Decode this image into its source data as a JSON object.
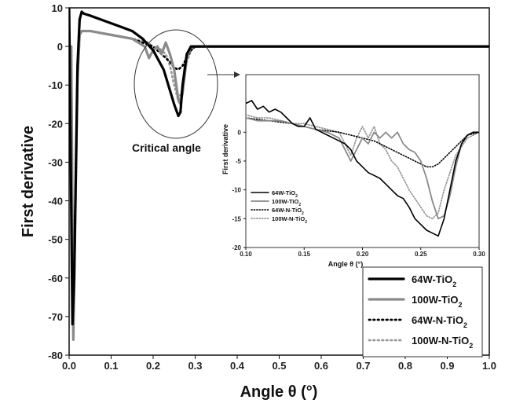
{
  "chart_data": [
    {
      "type": "line",
      "xlabel": "Angle θ (°)",
      "ylabel": "First derivative",
      "xlim": [
        0.0,
        1.0
      ],
      "ylim": [
        -80,
        10
      ],
      "x_ticks": [
        "0.0",
        "0.1",
        "0.2",
        "0.3",
        "0.4",
        "0.5",
        "0.6",
        "0.7",
        "0.8",
        "0.9",
        "1.0"
      ],
      "y_ticks": [
        "10",
        "0",
        "-10",
        "-20",
        "-30",
        "-40",
        "-50",
        "-60",
        "-70",
        "-80"
      ],
      "legend": "bottom-right",
      "annotation": "Critical angle",
      "series": [
        {
          "name": "64W-TiO",
          "subscript": "2",
          "style": "solid-black",
          "x": [
            0.0,
            0.008,
            0.012,
            0.02,
            0.025,
            0.03,
            0.035,
            0.05,
            0.075,
            0.1,
            0.125,
            0.15,
            0.175,
            0.2,
            0.225,
            0.25,
            0.26,
            0.265,
            0.27,
            0.28,
            0.29,
            0.3,
            0.35,
            1.0
          ],
          "y": [
            10,
            -72,
            -60,
            -5,
            7,
            9,
            8.5,
            8,
            7,
            6,
            5,
            4,
            2,
            -1,
            -6,
            -15,
            -18,
            -17,
            -10,
            -2,
            0,
            0,
            0,
            0
          ]
        },
        {
          "name": "100W-TiO",
          "subscript": "2",
          "style": "solid-gray",
          "x": [
            0.005,
            0.01,
            0.02,
            0.025,
            0.03,
            0.05,
            0.1,
            0.15,
            0.18,
            0.19,
            0.2,
            0.21,
            0.22,
            0.23,
            0.24,
            0.25,
            0.26,
            0.265,
            0.27,
            0.28,
            0.29,
            0.3,
            0.35,
            1.0
          ],
          "y": [
            0,
            -76,
            -8,
            3,
            4,
            4,
            3,
            2,
            0,
            -3,
            -1,
            0,
            -2,
            1,
            -2,
            -6,
            -14,
            -15,
            -12,
            -3,
            0,
            0,
            0,
            0
          ]
        },
        {
          "name": "64W-N-TiO",
          "subscript": "2",
          "style": "dotted-black",
          "x": [
            0.005,
            0.01,
            0.02,
            0.025,
            0.03,
            0.05,
            0.1,
            0.15,
            0.2,
            0.22,
            0.24,
            0.25,
            0.26,
            0.27,
            0.28,
            0.29,
            0.3,
            0.35,
            1.0
          ],
          "y": [
            0,
            -75,
            -8,
            3,
            4,
            4,
            3,
            2,
            0,
            -2,
            -4,
            -5.5,
            -6,
            -5,
            -3,
            -1,
            0,
            0,
            0
          ]
        },
        {
          "name": "100W-N-TiO",
          "subscript": "2",
          "style": "dotted-gray",
          "x": [
            0.005,
            0.01,
            0.02,
            0.025,
            0.03,
            0.05,
            0.1,
            0.15,
            0.19,
            0.2,
            0.21,
            0.22,
            0.23,
            0.24,
            0.25,
            0.26,
            0.27,
            0.28,
            0.29,
            0.3,
            0.35,
            1.0
          ],
          "y": [
            0,
            -74,
            -8,
            3,
            4,
            4,
            3,
            2,
            1,
            -1,
            0,
            -1,
            -2,
            -5,
            -10,
            -14,
            -11,
            -4,
            -1,
            0,
            0,
            0
          ]
        }
      ]
    },
    {
      "type": "line",
      "inset": true,
      "xlabel": "Angle θ (°)",
      "ylabel": "First derivative",
      "xlim": [
        0.1,
        0.3
      ],
      "ylim": [
        -20,
        10
      ],
      "x_ticks": [
        "0.10",
        "0.15",
        "0.20",
        "0.25",
        "0.30"
      ],
      "y_ticks": [
        "0",
        "-5",
        "-10",
        "-15",
        "-20"
      ],
      "legend": "bottom-left",
      "series": [
        {
          "name": "64W-TiO",
          "subscript": "2",
          "style": "solid-black",
          "x": [
            0.1,
            0.105,
            0.11,
            0.115,
            0.12,
            0.125,
            0.13,
            0.135,
            0.14,
            0.145,
            0.15,
            0.155,
            0.16,
            0.165,
            0.17,
            0.175,
            0.18,
            0.185,
            0.19,
            0.195,
            0.2,
            0.205,
            0.21,
            0.215,
            0.22,
            0.225,
            0.23,
            0.235,
            0.24,
            0.245,
            0.25,
            0.255,
            0.26,
            0.265,
            0.27,
            0.275,
            0.28,
            0.285,
            0.29,
            0.295,
            0.3
          ],
          "y": [
            5,
            5.5,
            4,
            4.5,
            3.5,
            4,
            3.5,
            2.5,
            1.5,
            1,
            1,
            2.5,
            0.5,
            0,
            -0.5,
            -1,
            -1.5,
            -2,
            -3,
            -5,
            -6,
            -7,
            -7.5,
            -8,
            -9,
            -10,
            -11,
            -11.5,
            -13,
            -15,
            -16,
            -17,
            -17.5,
            -18,
            -15,
            -10,
            -5,
            -2,
            -0.5,
            0,
            0
          ]
        },
        {
          "name": "100W-TiO",
          "subscript": "2",
          "style": "solid-gray",
          "x": [
            0.1,
            0.11,
            0.12,
            0.13,
            0.14,
            0.15,
            0.16,
            0.17,
            0.18,
            0.185,
            0.19,
            0.195,
            0.2,
            0.205,
            0.21,
            0.215,
            0.22,
            0.225,
            0.23,
            0.235,
            0.24,
            0.245,
            0.25,
            0.255,
            0.26,
            0.265,
            0.27,
            0.275,
            0.28,
            0.285,
            0.29,
            0.295,
            0.3
          ],
          "y": [
            2.5,
            2,
            2,
            2,
            1.5,
            1,
            0.5,
            0,
            -1,
            -3,
            -5,
            -3,
            -1,
            -2,
            0,
            -1,
            0,
            -1,
            0,
            -2,
            -3,
            -3.5,
            -5,
            -8,
            -12,
            -15,
            -14.5,
            -11,
            -6,
            -2,
            -0.5,
            0,
            0
          ]
        },
        {
          "name": "64W-N-TiO",
          "subscript": "2",
          "style": "dotted-black",
          "x": [
            0.1,
            0.12,
            0.14,
            0.16,
            0.18,
            0.2,
            0.21,
            0.22,
            0.23,
            0.24,
            0.25,
            0.255,
            0.26,
            0.265,
            0.27,
            0.275,
            0.28,
            0.285,
            0.29,
            0.3
          ],
          "y": [
            2.5,
            2,
            1.5,
            0.5,
            0,
            -1,
            -1.5,
            -2.5,
            -3.5,
            -4.5,
            -5.5,
            -6,
            -6,
            -5.5,
            -4.5,
            -3.5,
            -2.5,
            -1.5,
            -0.5,
            0
          ]
        },
        {
          "name": "100W-N-TiO",
          "subscript": "2",
          "style": "dotted-gray",
          "x": [
            0.1,
            0.11,
            0.12,
            0.13,
            0.14,
            0.15,
            0.16,
            0.17,
            0.18,
            0.185,
            0.19,
            0.195,
            0.2,
            0.205,
            0.21,
            0.215,
            0.22,
            0.225,
            0.23,
            0.24,
            0.25,
            0.255,
            0.26,
            0.265,
            0.27,
            0.28,
            0.29,
            0.3
          ],
          "y": [
            3,
            2.5,
            2.5,
            2,
            1.5,
            1.5,
            1,
            0.5,
            0,
            -2,
            -4,
            -1,
            1,
            -1,
            1,
            -2,
            -3,
            -5,
            -6,
            -10,
            -13,
            -14.5,
            -15,
            -14,
            -10,
            -4,
            -1,
            0
          ]
        }
      ]
    }
  ]
}
